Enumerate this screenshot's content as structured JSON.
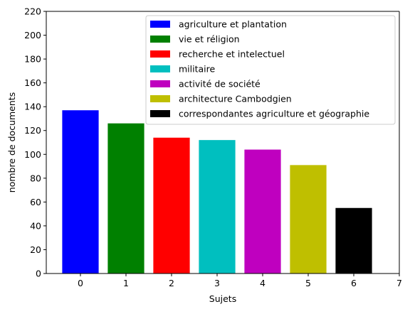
{
  "chart_data": {
    "type": "bar",
    "title": "",
    "xlabel": "Sujets",
    "ylabel": "nombre de documents",
    "xlim": [
      -0.75,
      7
    ],
    "ylim": [
      0,
      220
    ],
    "x_ticks": [
      0,
      1,
      2,
      3,
      4,
      5,
      6,
      7
    ],
    "y_ticks": [
      0,
      20,
      40,
      60,
      80,
      100,
      120,
      140,
      160,
      180,
      200,
      220
    ],
    "grid": false,
    "legend_position": "upper right",
    "bars": [
      {
        "x": 0,
        "value": 137,
        "label": "agriculture et plantation",
        "color": "#0000ff"
      },
      {
        "x": 1,
        "value": 126,
        "label": "vie et réligion",
        "color": "#008000"
      },
      {
        "x": 2,
        "value": 114,
        "label": "recherche et intelectuel",
        "color": "#ff0000"
      },
      {
        "x": 3,
        "value": 112,
        "label": "militaire",
        "color": "#00bfbf"
      },
      {
        "x": 4,
        "value": 104,
        "label": "activité de société",
        "color": "#bf00bf"
      },
      {
        "x": 5,
        "value": 91,
        "label": "architecture Cambodgien",
        "color": "#bfbf00"
      },
      {
        "x": 6,
        "value": 55,
        "label": "correspondantes agriculture et géographie",
        "color": "#000000"
      }
    ]
  }
}
